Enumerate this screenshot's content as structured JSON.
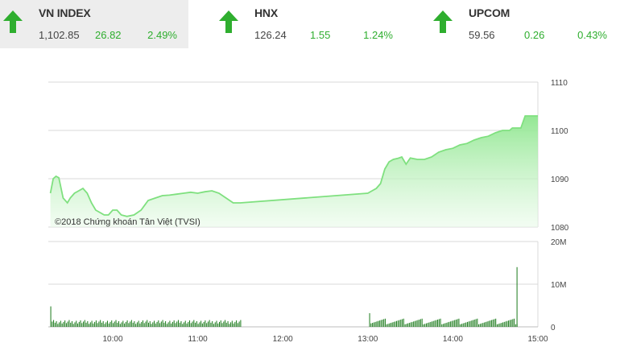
{
  "indices": [
    {
      "name": "VN INDEX",
      "value": "1,102.85",
      "change": "26.82",
      "percent": "2.49%",
      "direction": "up",
      "active": true
    },
    {
      "name": "HNX",
      "value": "126.24",
      "change": "1.55",
      "percent": "1.24%",
      "direction": "up",
      "active": false
    },
    {
      "name": "UPCOM",
      "value": "59.56",
      "change": "0.26",
      "percent": "0.43%",
      "direction": "up",
      "active": false
    }
  ],
  "colors": {
    "up": "#2fae2f",
    "line": "#7fe07f",
    "volume": "#1a7a1a",
    "grid": "#d9d9d9"
  },
  "watermark": "©2018 Chứng khoán Tân Việt (TVSI)",
  "chart_data": [
    {
      "type": "area",
      "x_ticks": [
        "10:00",
        "11:00",
        "12:00",
        "13:00",
        "14:00",
        "15:00"
      ],
      "y_ticks": [
        1080,
        1090,
        1100,
        1110
      ],
      "ylim": [
        1080,
        1110
      ],
      "grid": true,
      "series": [
        {
          "x": [
            "09:16",
            "09:18",
            "09:20",
            "09:22",
            "09:25",
            "09:28",
            "09:30",
            "09:33",
            "09:36",
            "09:39",
            "09:42",
            "09:45",
            "09:48",
            "09:51",
            "09:54",
            "09:57",
            "10:00",
            "10:03",
            "10:06",
            "10:10",
            "10:15",
            "10:20",
            "10:25",
            "10:30",
            "10:35",
            "10:40",
            "10:45",
            "10:50",
            "10:55",
            "11:00",
            "11:05",
            "11:10",
            "11:15",
            "11:20",
            "11:25",
            "11:30",
            "13:00",
            "13:03",
            "13:06",
            "13:09",
            "13:12",
            "13:15",
            "13:18",
            "13:21",
            "13:24",
            "13:27",
            "13:30",
            "13:35",
            "13:40",
            "13:45",
            "13:50",
            "13:55",
            "14:00",
            "14:05",
            "14:10",
            "14:15",
            "14:20",
            "14:25",
            "14:30",
            "14:35",
            "14:40",
            "14:42",
            "14:45",
            "14:48",
            "14:51",
            "14:54",
            "14:57",
            "15:00"
          ],
          "values": [
            1087,
            1090,
            1090.5,
            1090.2,
            1086,
            1085,
            1086,
            1087,
            1087.5,
            1088,
            1087,
            1085,
            1083.5,
            1083,
            1082.5,
            1082.5,
            1083.5,
            1083.5,
            1082.5,
            1082.2,
            1082.5,
            1083.5,
            1085.5,
            1086,
            1086.5,
            1086.6,
            1086.8,
            1087,
            1087.2,
            1087,
            1087.3,
            1087.5,
            1087,
            1086,
            1085,
            1085,
            1087,
            1087.5,
            1088,
            1089,
            1092,
            1093.5,
            1094,
            1094.2,
            1094.5,
            1093,
            1094.3,
            1094,
            1094,
            1094.5,
            1095.5,
            1096,
            1096.3,
            1097,
            1097.3,
            1098,
            1098.5,
            1098.8,
            1099.5,
            1100,
            1100,
            1100.5,
            1100.5,
            1100.5,
            1103,
            1103,
            1103,
            1103
          ]
        }
      ]
    },
    {
      "type": "bar",
      "y_ticks": [
        "0",
        "10M",
        "20M"
      ],
      "ylim": [
        0,
        20000000
      ],
      "series": [
        {
          "name": "volume",
          "note_spikes": [
            {
              "x": "09:16",
              "value": 4800000
            },
            {
              "x": "13:01",
              "value": 3200000
            },
            {
              "x": "14:45",
              "value": 14000000
            }
          ]
        }
      ]
    }
  ]
}
